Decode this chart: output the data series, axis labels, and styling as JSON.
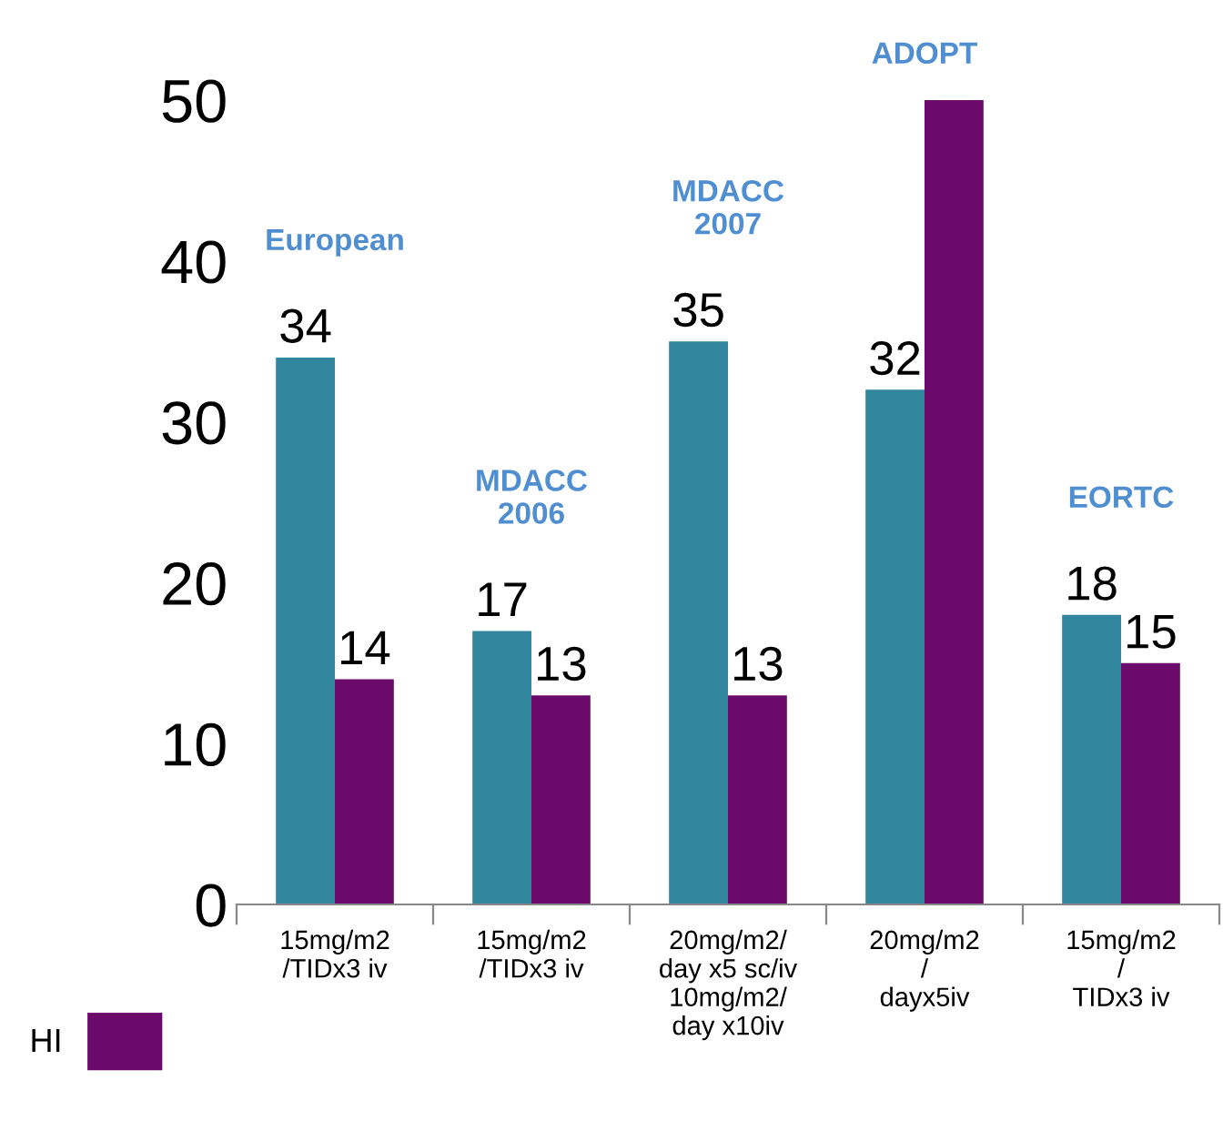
{
  "chart_data": {
    "type": "bar",
    "categories": [
      "15mg/m2\n/TIDx3 iv",
      "15mg/m2\n/TIDx3 iv",
      "20mg/m2/\nday x5 sc/iv\n10mg/m2/\nday x10iv",
      "20mg/m2\n/\ndayx5iv",
      "15mg/m2\n/\nTIDx3 iv"
    ],
    "series": [
      {
        "color": "#31859c",
        "values": [
          34,
          17,
          35,
          32,
          18
        ],
        "value_labels": [
          "34",
          "17",
          "35",
          "32",
          "18"
        ]
      },
      {
        "name": "HI",
        "color": "#6b0a6b",
        "values": [
          14,
          13,
          13,
          50,
          15
        ],
        "value_labels": [
          "14",
          "13",
          "13",
          null,
          "15"
        ]
      }
    ],
    "annotations": [
      "European",
      "MDACC\n2006",
      "MDACC\n2007",
      "ADOPT",
      "EORTC"
    ],
    "ylim": [
      0,
      50
    ],
    "yticks": [
      0,
      10,
      20,
      30,
      40,
      50
    ],
    "grid": false,
    "legend": "bottom left"
  }
}
